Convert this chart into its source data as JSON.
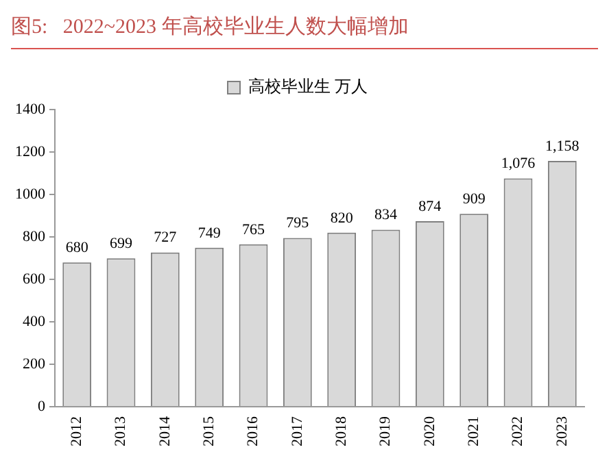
{
  "chart_data": {
    "type": "bar",
    "title": "图5:   2022~2023 年高校毕业生人数大幅增加",
    "categories": [
      "2012",
      "2013",
      "2014",
      "2015",
      "2016",
      "2017",
      "2018",
      "2019",
      "2020",
      "2021",
      "2022",
      "2023"
    ],
    "series": [
      {
        "name": "高校毕业生 万人",
        "color": "#d9d9d9",
        "values": [
          680,
          699,
          727,
          749,
          765,
          795,
          820,
          834,
          874,
          909,
          1076,
          1158
        ],
        "value_labels": [
          "680",
          "699",
          "727",
          "749",
          "765",
          "795",
          "820",
          "834",
          "874",
          "909",
          "1,076",
          "1,158"
        ]
      }
    ],
    "ylim": [
      0,
      1400
    ],
    "yticks": [
      0,
      200,
      400,
      600,
      800,
      1000,
      1200,
      1400
    ],
    "grid": false,
    "legend": "top"
  }
}
